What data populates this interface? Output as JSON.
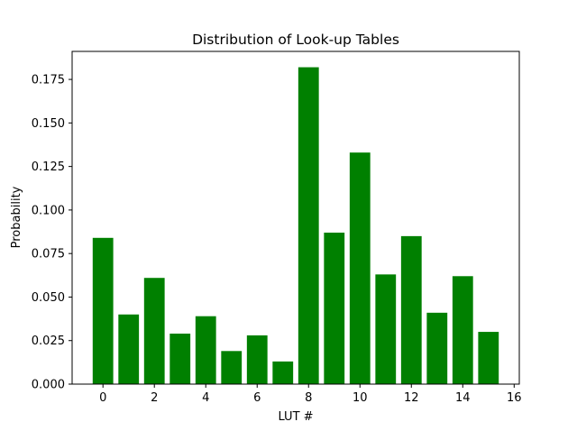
{
  "chart_data": {
    "type": "bar",
    "title": "Distribution of Look-up Tables",
    "xlabel": "LUT #",
    "ylabel": "Probability",
    "categories": [
      0,
      1,
      2,
      3,
      4,
      5,
      6,
      7,
      8,
      9,
      10,
      11,
      12,
      13,
      14,
      15
    ],
    "values": [
      0.084,
      0.04,
      0.061,
      0.029,
      0.039,
      0.019,
      0.028,
      0.013,
      0.182,
      0.087,
      0.133,
      0.063,
      0.085,
      0.041,
      0.062,
      0.03
    ],
    "bar_color": "#008000",
    "xlim": [
      -1.2,
      16.2
    ],
    "ylim": [
      0,
      0.1911
    ],
    "xticks": [
      "0",
      "2",
      "4",
      "6",
      "8",
      "10",
      "12",
      "14",
      "16"
    ],
    "yticks": [
      "0.000",
      "0.025",
      "0.050",
      "0.075",
      "0.100",
      "0.125",
      "0.150",
      "0.175"
    ],
    "grid": false,
    "legend": false
  }
}
